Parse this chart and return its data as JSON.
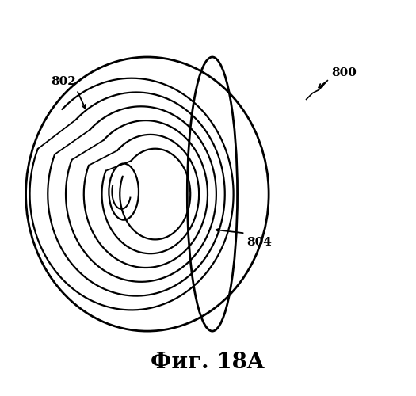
{
  "title": "Фиг. 18A",
  "label_800": "800",
  "label_802": "802",
  "label_804": "804",
  "bg_color": "#ffffff",
  "line_color": "#000000",
  "fig_width": 5.25,
  "fig_height": 5.0,
  "dpi": 100
}
